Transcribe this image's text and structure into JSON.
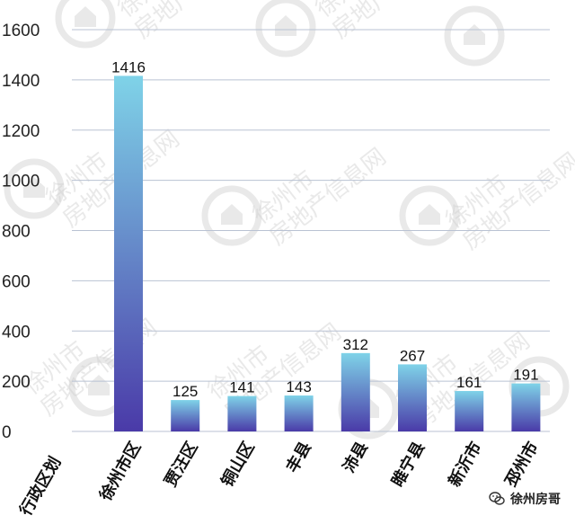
{
  "chart_data": {
    "type": "bar",
    "category_axis_title": "行政区划",
    "categories": [
      "徐州市区",
      "贾汪区",
      "铜山区",
      "丰县",
      "沛县",
      "睢宁县",
      "新沂市",
      "邳州市"
    ],
    "values": [
      1416,
      125,
      141,
      143,
      312,
      267,
      161,
      191
    ],
    "value_labels": [
      "1416",
      "125",
      "141",
      "143",
      "312",
      "267",
      "161",
      "191"
    ],
    "yticks": [
      "0",
      "200",
      "400",
      "600",
      "800",
      "1000",
      "1200",
      "1400",
      "1600"
    ],
    "ylim": [
      0,
      1600
    ],
    "grid": true,
    "bar_gradient": {
      "top": "#7fd3e8",
      "bottom": "#4a3aa8"
    }
  },
  "watermark": {
    "text_line1": "徐州市",
    "text_line2": "房地产信息网"
  },
  "brand": {
    "name": "徐州房哥",
    "icon": "wechat-icon"
  }
}
